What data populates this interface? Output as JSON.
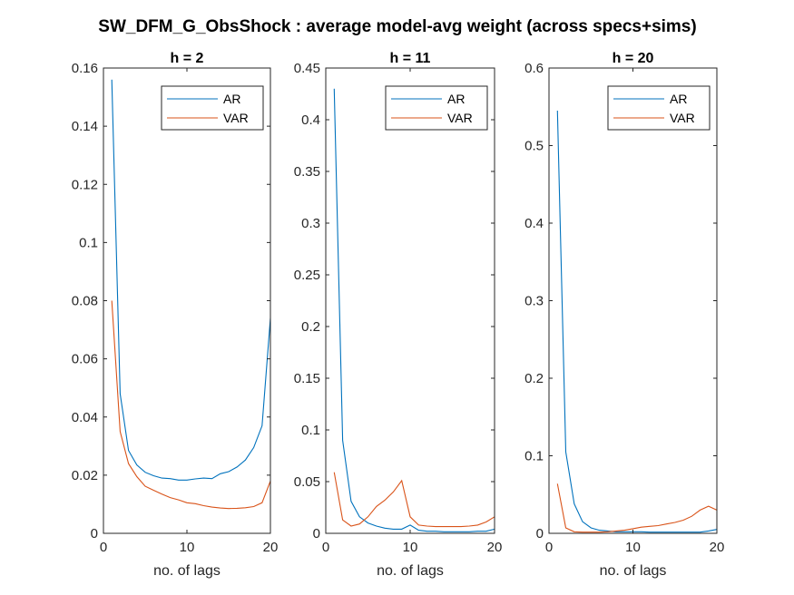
{
  "figure": {
    "title": "SW_DFM_G_ObsShock : average model-avg weight (across specs+sims)"
  },
  "colors": {
    "AR": "#0072BD",
    "VAR": "#D95319",
    "axis": "#262626"
  },
  "chart_data": [
    {
      "type": "line",
      "title": "h = 2",
      "xlabel": "no. of lags",
      "ylabel": "",
      "xlim": [
        0,
        20
      ],
      "ylim": [
        0,
        0.16
      ],
      "xticks": [
        0,
        10,
        20
      ],
      "yticks": [
        0,
        0.02,
        0.04,
        0.06,
        0.08,
        0.1,
        0.12,
        0.14,
        0.16
      ],
      "ytick_labels": [
        "0",
        "0.02",
        "0.04",
        "0.06",
        "0.08",
        "0.1",
        "0.12",
        "0.14",
        "0.16"
      ],
      "legend": "top-right",
      "x": [
        1,
        2,
        3,
        4,
        5,
        6,
        7,
        8,
        9,
        10,
        11,
        12,
        13,
        14,
        15,
        16,
        17,
        18,
        19,
        20
      ],
      "series": [
        {
          "name": "AR",
          "values": [
            0.156,
            0.048,
            0.0285,
            0.0235,
            0.021,
            0.0198,
            0.019,
            0.0188,
            0.0183,
            0.0183,
            0.0187,
            0.019,
            0.0188,
            0.0205,
            0.0212,
            0.0228,
            0.0252,
            0.0295,
            0.037,
            0.074
          ]
        },
        {
          "name": "VAR",
          "values": [
            0.08,
            0.035,
            0.024,
            0.0195,
            0.0162,
            0.0148,
            0.0135,
            0.0123,
            0.0115,
            0.0105,
            0.0102,
            0.0095,
            0.009,
            0.0087,
            0.0085,
            0.0086,
            0.0088,
            0.0092,
            0.0105,
            0.018
          ]
        }
      ]
    },
    {
      "type": "line",
      "title": "h = 11",
      "xlabel": "no. of lags",
      "ylabel": "",
      "xlim": [
        0,
        20
      ],
      "ylim": [
        0,
        0.45
      ],
      "xticks": [
        0,
        10,
        20
      ],
      "yticks": [
        0,
        0.05,
        0.1,
        0.15,
        0.2,
        0.25,
        0.3,
        0.35,
        0.4,
        0.45
      ],
      "ytick_labels": [
        "0",
        "0.05",
        "0.1",
        "0.15",
        "0.2",
        "0.25",
        "0.3",
        "0.35",
        "0.4",
        "0.45"
      ],
      "legend": "top-right",
      "x": [
        1,
        2,
        3,
        4,
        5,
        6,
        7,
        8,
        9,
        10,
        11,
        12,
        13,
        14,
        15,
        16,
        17,
        18,
        19,
        20
      ],
      "series": [
        {
          "name": "AR",
          "values": [
            0.43,
            0.09,
            0.031,
            0.016,
            0.01,
            0.007,
            0.005,
            0.004,
            0.004,
            0.008,
            0.003,
            0.002,
            0.002,
            0.0015,
            0.0015,
            0.0015,
            0.0015,
            0.002,
            0.002,
            0.004
          ]
        },
        {
          "name": "VAR",
          "values": [
            0.059,
            0.013,
            0.007,
            0.009,
            0.016,
            0.026,
            0.032,
            0.04,
            0.051,
            0.016,
            0.008,
            0.007,
            0.0065,
            0.0065,
            0.0065,
            0.0065,
            0.007,
            0.008,
            0.011,
            0.016
          ]
        }
      ]
    },
    {
      "type": "line",
      "title": "h = 20",
      "xlabel": "no. of lags",
      "ylabel": "",
      "xlim": [
        0,
        20
      ],
      "ylim": [
        0,
        0.6
      ],
      "xticks": [
        0,
        10,
        20
      ],
      "yticks": [
        0,
        0.1,
        0.2,
        0.3,
        0.4,
        0.5,
        0.6
      ],
      "ytick_labels": [
        "0",
        "0.1",
        "0.2",
        "0.3",
        "0.4",
        "0.5",
        "0.6"
      ],
      "legend": "top-right",
      "x": [
        1,
        2,
        3,
        4,
        5,
        6,
        7,
        8,
        9,
        10,
        11,
        12,
        13,
        14,
        15,
        16,
        17,
        18,
        19,
        20
      ],
      "series": [
        {
          "name": "AR",
          "values": [
            0.545,
            0.105,
            0.038,
            0.015,
            0.007,
            0.004,
            0.003,
            0.002,
            0.002,
            0.002,
            0.002,
            0.0015,
            0.0015,
            0.0015,
            0.0015,
            0.0015,
            0.0015,
            0.0015,
            0.003,
            0.005
          ]
        },
        {
          "name": "VAR",
          "values": [
            0.064,
            0.007,
            0.002,
            0.0015,
            0.0015,
            0.0015,
            0.002,
            0.003,
            0.004,
            0.006,
            0.008,
            0.009,
            0.01,
            0.012,
            0.014,
            0.017,
            0.022,
            0.03,
            0.035,
            0.03
          ]
        }
      ]
    }
  ]
}
